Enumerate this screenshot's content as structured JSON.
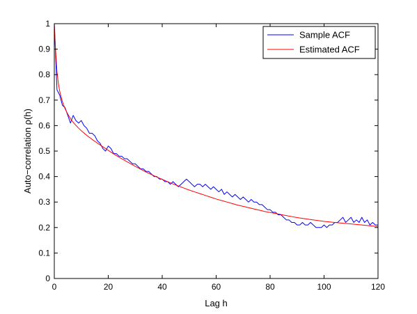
{
  "chart_data": {
    "type": "line",
    "xlabel": "Lag h",
    "ylabel": "Auto−correlation ρ(h)",
    "xlim": [
      0,
      120
    ],
    "ylim": [
      0,
      1
    ],
    "x_ticks": [
      0,
      20,
      40,
      60,
      80,
      100,
      120
    ],
    "y_ticks": [
      0,
      0.1,
      0.2,
      0.3,
      0.4,
      0.5,
      0.6,
      0.7,
      0.8,
      0.9,
      1
    ],
    "x_tick_labels": [
      "0",
      "20",
      "40",
      "60",
      "80",
      "100",
      "120"
    ],
    "y_tick_labels": [
      "0",
      "0.1",
      "0.2",
      "0.3",
      "0.4",
      "0.5",
      "0.6",
      "0.7",
      "0.8",
      "0.9",
      "1"
    ],
    "grid": false,
    "legend_position": "top-right",
    "series": [
      {
        "name": "Sample ACF",
        "color": "#0000ff",
        "x": [
          0,
          1,
          2,
          3,
          4,
          5,
          6,
          7,
          8,
          9,
          10,
          11,
          12,
          13,
          14,
          15,
          16,
          17,
          18,
          19,
          20,
          21,
          22,
          23,
          24,
          25,
          26,
          27,
          28,
          29,
          30,
          31,
          32,
          33,
          34,
          35,
          36,
          37,
          38,
          39,
          40,
          41,
          42,
          43,
          44,
          45,
          46,
          47,
          48,
          49,
          50,
          51,
          52,
          53,
          54,
          55,
          56,
          57,
          58,
          59,
          60,
          61,
          62,
          63,
          64,
          65,
          66,
          67,
          68,
          69,
          70,
          71,
          72,
          73,
          74,
          75,
          76,
          77,
          78,
          79,
          80,
          81,
          82,
          83,
          84,
          85,
          86,
          87,
          88,
          89,
          90,
          91,
          92,
          93,
          94,
          95,
          96,
          97,
          98,
          99,
          100,
          101,
          102,
          103,
          104,
          105,
          106,
          107,
          108,
          109,
          110,
          111,
          112,
          113,
          114,
          115,
          116,
          117,
          118,
          119,
          120
        ],
        "values": [
          1.0,
          0.74,
          0.72,
          0.68,
          0.67,
          0.64,
          0.61,
          0.64,
          0.62,
          0.61,
          0.62,
          0.6,
          0.59,
          0.57,
          0.57,
          0.56,
          0.54,
          0.53,
          0.51,
          0.5,
          0.52,
          0.51,
          0.49,
          0.49,
          0.48,
          0.48,
          0.47,
          0.47,
          0.46,
          0.45,
          0.45,
          0.44,
          0.43,
          0.43,
          0.42,
          0.42,
          0.41,
          0.4,
          0.4,
          0.39,
          0.39,
          0.38,
          0.38,
          0.37,
          0.38,
          0.37,
          0.36,
          0.37,
          0.38,
          0.39,
          0.38,
          0.37,
          0.36,
          0.37,
          0.37,
          0.36,
          0.37,
          0.36,
          0.35,
          0.36,
          0.35,
          0.34,
          0.35,
          0.33,
          0.34,
          0.33,
          0.32,
          0.33,
          0.32,
          0.31,
          0.32,
          0.31,
          0.3,
          0.31,
          0.3,
          0.3,
          0.29,
          0.29,
          0.28,
          0.27,
          0.27,
          0.26,
          0.26,
          0.25,
          0.25,
          0.24,
          0.23,
          0.23,
          0.22,
          0.22,
          0.21,
          0.21,
          0.22,
          0.21,
          0.21,
          0.22,
          0.21,
          0.2,
          0.2,
          0.2,
          0.21,
          0.2,
          0.21,
          0.21,
          0.22,
          0.22,
          0.23,
          0.24,
          0.22,
          0.23,
          0.24,
          0.22,
          0.23,
          0.22,
          0.24,
          0.22,
          0.23,
          0.21,
          0.22,
          0.21,
          0.21
        ]
      },
      {
        "name": "Estimated ACF",
        "color": "#ff0000",
        "x": [
          0,
          0.5,
          1,
          1.5,
          2,
          3,
          4,
          5,
          6,
          7,
          8,
          9,
          10,
          12,
          14,
          16,
          18,
          20,
          22,
          24,
          26,
          28,
          30,
          32,
          34,
          36,
          38,
          40,
          42,
          44,
          46,
          48,
          50,
          52,
          54,
          56,
          58,
          60,
          62,
          64,
          66,
          68,
          70,
          72,
          74,
          76,
          78,
          80,
          82,
          84,
          86,
          88,
          90,
          92,
          94,
          96,
          98,
          100,
          102,
          104,
          106,
          108,
          110,
          112,
          114,
          116,
          118,
          120
        ],
        "values": [
          1.0,
          0.892,
          0.811,
          0.766,
          0.735,
          0.694,
          0.666,
          0.645,
          0.627,
          0.613,
          0.601,
          0.59,
          0.58,
          0.562,
          0.546,
          0.531,
          0.517,
          0.503,
          0.489,
          0.476,
          0.464,
          0.452,
          0.44,
          0.429,
          0.418,
          0.408,
          0.398,
          0.389,
          0.38,
          0.371,
          0.363,
          0.355,
          0.347,
          0.34,
          0.333,
          0.326,
          0.319,
          0.312,
          0.306,
          0.3,
          0.294,
          0.288,
          0.283,
          0.278,
          0.273,
          0.268,
          0.263,
          0.259,
          0.255,
          0.251,
          0.247,
          0.243,
          0.239,
          0.236,
          0.233,
          0.23,
          0.227,
          0.224,
          0.222,
          0.22,
          0.218,
          0.216,
          0.214,
          0.212,
          0.21,
          0.208,
          0.206,
          0.204
        ]
      }
    ]
  }
}
